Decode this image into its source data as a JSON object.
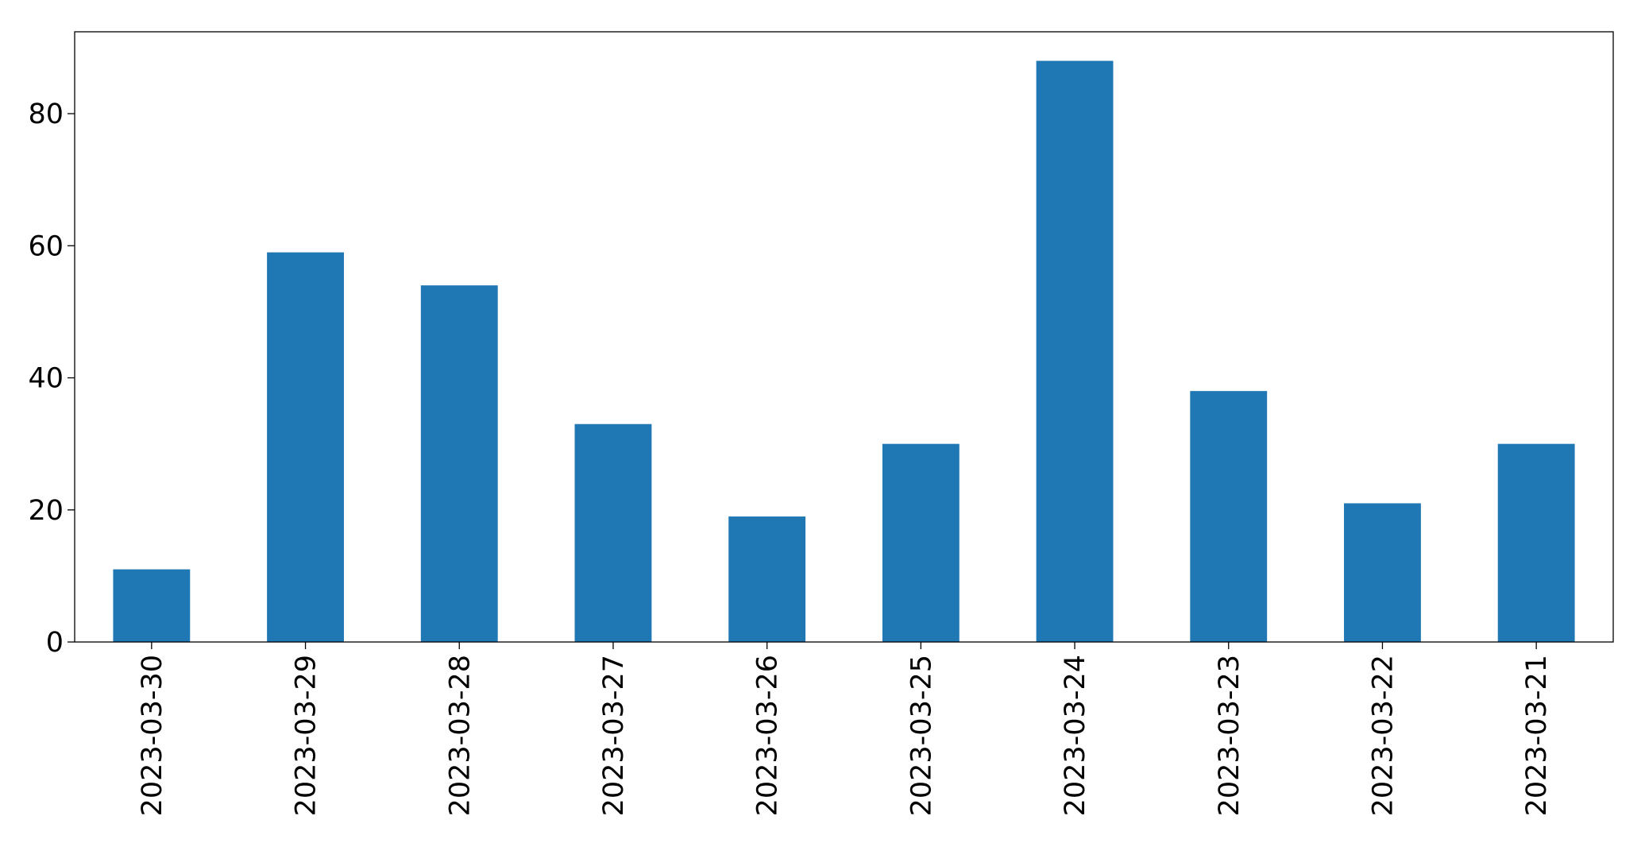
{
  "chart_data": {
    "type": "bar",
    "categories": [
      "2023-03-30",
      "2023-03-29",
      "2023-03-28",
      "2023-03-27",
      "2023-03-26",
      "2023-03-25",
      "2023-03-24",
      "2023-03-23",
      "2023-03-22",
      "2023-03-21"
    ],
    "values": [
      11,
      59,
      54,
      33,
      19,
      30,
      88,
      38,
      21,
      30
    ],
    "color": "#1f77b4",
    "ylim": [
      0,
      92.4
    ],
    "yticks": [
      0,
      20,
      40,
      60,
      80
    ],
    "grid": false
  }
}
